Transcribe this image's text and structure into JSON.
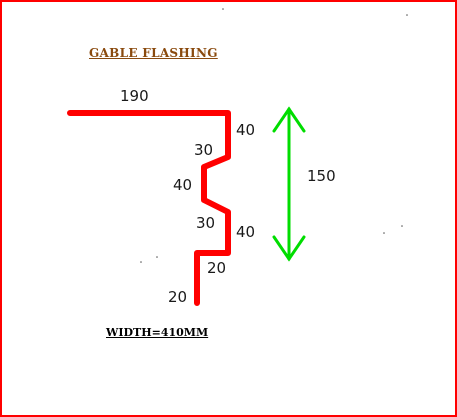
{
  "title": "GABLE FLASHING",
  "dimensions": {
    "top_length": "190",
    "right_seg_1": "40",
    "left_seg_1": "30",
    "left_seg_2": "40",
    "left_seg_3": "30",
    "right_seg_2": "40",
    "return_step": "20",
    "bottom_leg": "20",
    "overall_height": "150"
  },
  "width_note": "WIDTH=410MM",
  "colors": {
    "frame": "#ff0000",
    "profile": "#ff0000",
    "height_arrow": "#00dd00",
    "title": "#8a4a0e",
    "text": "#1a1a1a"
  }
}
